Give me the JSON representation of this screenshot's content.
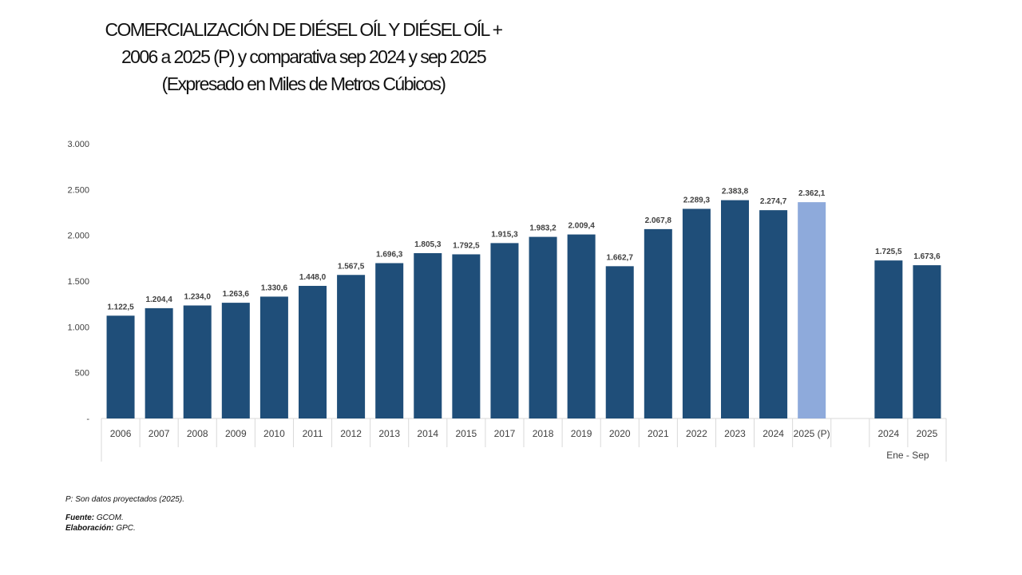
{
  "title": {
    "line1": "COMERCIALIZACIÓN DE DIÉSEL OÍL Y DIÉSEL OÍL +",
    "line2": "2006 a 2025 (P) y comparativa sep 2024 y sep 2025",
    "line3": "(Expresado en Miles de Metros Cúbicos)"
  },
  "colors": {
    "bar": "#1f4e79",
    "projected_bar": "#8eaadb",
    "axis": "#d9d9d9",
    "text": "#404040"
  },
  "chart_data": {
    "type": "bar",
    "ylim": [
      0,
      3000
    ],
    "yticks": [
      {
        "value": 0,
        "label": "-"
      },
      {
        "value": 500,
        "label": "500"
      },
      {
        "value": 1000,
        "label": "1.000"
      },
      {
        "value": 1500,
        "label": "1.500"
      },
      {
        "value": 2000,
        "label": "2.000"
      },
      {
        "value": 2500,
        "label": "2.500"
      },
      {
        "value": 3000,
        "label": "3.000"
      }
    ],
    "grid": false,
    "bars": [
      {
        "category": "2006",
        "value": 1122.5,
        "label": "1.122,5",
        "projected": false
      },
      {
        "category": "2007",
        "value": 1204.4,
        "label": "1.204,4",
        "projected": false
      },
      {
        "category": "2008",
        "value": 1234.0,
        "label": "1.234,0",
        "projected": false
      },
      {
        "category": "2009",
        "value": 1263.6,
        "label": "1.263,6",
        "projected": false
      },
      {
        "category": "2010",
        "value": 1330.6,
        "label": "1.330,6",
        "projected": false
      },
      {
        "category": "2011",
        "value": 1448.0,
        "label": "1.448,0",
        "projected": false
      },
      {
        "category": "2012",
        "value": 1567.5,
        "label": "1.567,5",
        "projected": false
      },
      {
        "category": "2013",
        "value": 1696.3,
        "label": "1.696,3",
        "projected": false
      },
      {
        "category": "2014",
        "value": 1805.3,
        "label": "1.805,3",
        "projected": false
      },
      {
        "category": "2015",
        "value": 1792.5,
        "label": "1.792,5",
        "projected": false
      },
      {
        "category": "2017",
        "value": 1915.3,
        "label": "1.915,3",
        "projected": false
      },
      {
        "category": "2018",
        "value": 1983.2,
        "label": "1.983,2",
        "projected": false
      },
      {
        "category": "2019",
        "value": 2009.4,
        "label": "2.009,4",
        "projected": false
      },
      {
        "category": "2020",
        "value": 1662.7,
        "label": "1.662,7",
        "projected": false
      },
      {
        "category": "2021",
        "value": 2067.8,
        "label": "2.067,8",
        "projected": false
      },
      {
        "category": "2022",
        "value": 2289.3,
        "label": "2.289,3",
        "projected": false
      },
      {
        "category": "2023",
        "value": 2383.8,
        "label": "2.383,8",
        "projected": false
      },
      {
        "category": "2024",
        "value": 2274.7,
        "label": "2.274,7",
        "projected": false
      },
      {
        "category": "2025 (P)",
        "value": 2362.1,
        "label": "2.362,1",
        "projected": true
      },
      {
        "category": "",
        "value": null,
        "label": "",
        "projected": false
      },
      {
        "category": "2024",
        "value": 1725.5,
        "label": "1.725,5",
        "projected": false
      },
      {
        "category": "2025",
        "value": 1673.6,
        "label": "1.673,6",
        "projected": false
      }
    ],
    "group_label": "Ene - Sep"
  },
  "notes": {
    "projected": "P: Son datos proyectados (2025).",
    "source_label": "Fuente:",
    "source_value": " GCOM.",
    "elaboration_label": "Elaboración:",
    "elaboration_value": " GPC."
  }
}
